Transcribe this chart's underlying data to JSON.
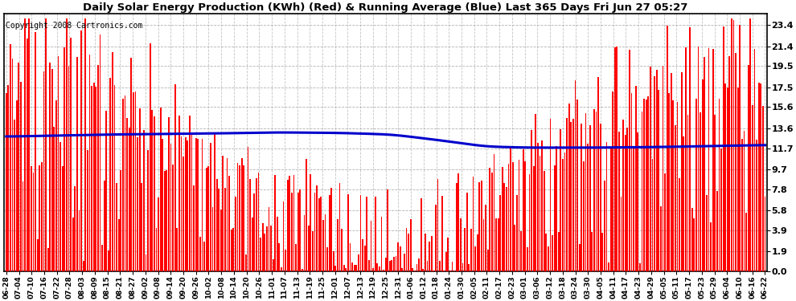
{
  "title": "Daily Solar Energy Production (KWh) (Red) & Running Average (Blue) Last 365 Days Fri Jun 27 05:27",
  "copyright": "Copyright 2008 Cartronics.com",
  "bar_color": "#FF0000",
  "avg_line_color": "#0000CC",
  "background_color": "#FFFFFF",
  "plot_bg_color": "#FFFFFF",
  "grid_color": "#AAAAAA",
  "yticks": [
    0.0,
    1.9,
    3.9,
    5.8,
    7.8,
    9.7,
    11.7,
    13.6,
    15.6,
    17.5,
    19.5,
    21.4,
    23.4
  ],
  "ymax": 24.5,
  "ymin": 0.0,
  "n_days": 365,
  "x_labels": [
    "06-28",
    "07-04",
    "07-10",
    "07-16",
    "07-22",
    "07-28",
    "08-03",
    "08-09",
    "08-15",
    "08-21",
    "08-27",
    "09-02",
    "09-08",
    "09-14",
    "09-20",
    "09-26",
    "10-02",
    "10-08",
    "10-14",
    "10-20",
    "10-26",
    "11-01",
    "11-07",
    "11-13",
    "11-19",
    "11-25",
    "12-01",
    "12-07",
    "12-13",
    "12-19",
    "12-25",
    "12-31",
    "01-06",
    "01-12",
    "01-18",
    "01-24",
    "01-30",
    "02-05",
    "02-11",
    "02-17",
    "02-23",
    "03-01",
    "03-06",
    "03-12",
    "03-18",
    "03-24",
    "03-30",
    "04-05",
    "04-11",
    "04-17",
    "04-23",
    "04-29",
    "05-05",
    "05-11",
    "05-17",
    "05-23",
    "05-29",
    "06-04",
    "06-10",
    "06-16",
    "06-22"
  ],
  "avg_control_points": [
    [
      0,
      12.8
    ],
    [
      50,
      13.0
    ],
    [
      100,
      13.1
    ],
    [
      130,
      13.2
    ],
    [
      160,
      13.15
    ],
    [
      185,
      13.0
    ],
    [
      210,
      12.4
    ],
    [
      230,
      11.85
    ],
    [
      250,
      11.75
    ],
    [
      280,
      11.75
    ],
    [
      310,
      11.8
    ],
    [
      340,
      11.9
    ],
    [
      364,
      12.0
    ]
  ]
}
